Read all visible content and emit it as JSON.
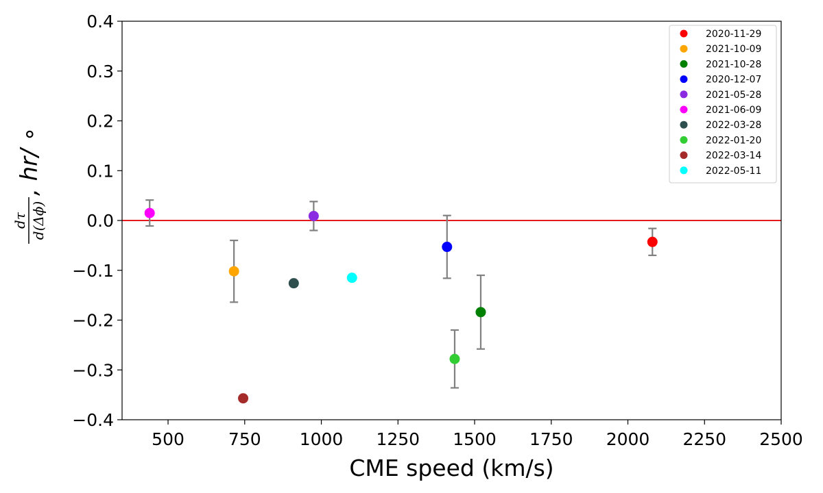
{
  "chart_data": {
    "type": "scatter",
    "xlabel": "CME speed (km/s)",
    "ylabel": {
      "numerator": "dτ",
      "denominator": "d(Δϕ)",
      "suffix": ", hr/ ∘"
    },
    "xlim": [
      350,
      2500
    ],
    "ylim": [
      -0.4,
      0.4
    ],
    "xticks": [
      500,
      750,
      1000,
      1250,
      1500,
      1750,
      2000,
      2250,
      2500
    ],
    "yticks": [
      -0.4,
      -0.3,
      -0.2,
      -0.1,
      0.0,
      0.1,
      0.2,
      0.3,
      0.4
    ],
    "xtick_labels": [
      "500",
      "750",
      "1000",
      "1250",
      "1500",
      "1750",
      "2000",
      "2250",
      "2500"
    ],
    "ytick_labels": [
      "−0.4",
      "−0.3",
      "−0.2",
      "−0.1",
      "0.0",
      "0.1",
      "0.2",
      "0.3",
      "0.4"
    ],
    "reference_line": {
      "y": 0.0,
      "color": "#e31a1c"
    },
    "legend_position": "top-right",
    "grid": false,
    "series": [
      {
        "name": "2020-11-29",
        "color": "#ff0000",
        "x": 2080,
        "y": -0.043,
        "err": 0.027
      },
      {
        "name": "2021-10-09",
        "color": "#ffa500",
        "x": 715,
        "y": -0.102,
        "err": 0.062
      },
      {
        "name": "2021-10-28",
        "color": "#008000",
        "x": 1520,
        "y": -0.184,
        "err": 0.074
      },
      {
        "name": "2020-12-07",
        "color": "#0000ff",
        "x": 1410,
        "y": -0.053,
        "err": 0.063
      },
      {
        "name": "2021-05-28",
        "color": "#8a2be2",
        "x": 975,
        "y": 0.009,
        "err": 0.029
      },
      {
        "name": "2021-06-09",
        "color": "#ff00ff",
        "x": 440,
        "y": 0.015,
        "err": 0.026
      },
      {
        "name": "2022-03-28",
        "color": "#2f4f4f",
        "x": 910,
        "y": -0.126,
        "err": null
      },
      {
        "name": "2022-01-20",
        "color": "#32cd32",
        "x": 1435,
        "y": -0.278,
        "err": 0.058
      },
      {
        "name": "2022-03-14",
        "color": "#a52a2a",
        "x": 745,
        "y": -0.357,
        "err": null
      },
      {
        "name": "2022-05-11",
        "color": "#00ffff",
        "x": 1100,
        "y": -0.115,
        "err": null
      }
    ]
  }
}
